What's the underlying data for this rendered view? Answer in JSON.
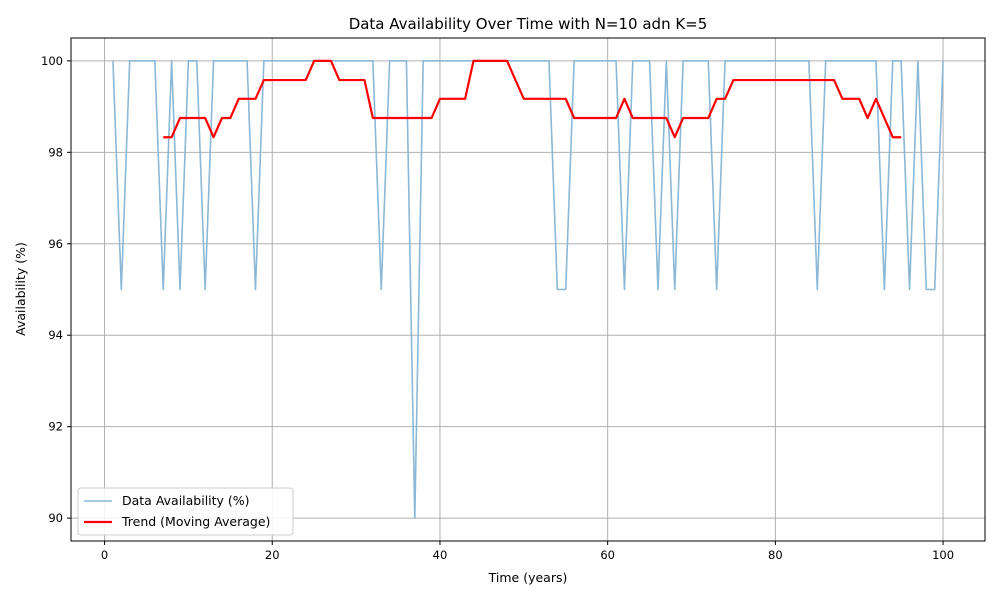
{
  "chart_data": {
    "type": "line",
    "title": "Data Availability Over Time with N=10 adn K=5",
    "xlabel": "Time (years)",
    "ylabel": "Availability (%)",
    "xlim": [
      -4,
      105
    ],
    "ylim": [
      89.5,
      100.5
    ],
    "xticks": [
      0,
      20,
      40,
      60,
      80,
      100
    ],
    "yticks": [
      90,
      92,
      94,
      96,
      98,
      100
    ],
    "grid": true,
    "legend": "lower-left",
    "series": [
      {
        "name": "Data Availability (%)",
        "color": "#8ab8d6",
        "x": [
          1,
          2,
          3,
          4,
          5,
          6,
          7,
          8,
          9,
          10,
          11,
          12,
          13,
          14,
          15,
          16,
          17,
          18,
          19,
          20,
          21,
          22,
          23,
          24,
          25,
          26,
          27,
          28,
          29,
          30,
          31,
          32,
          33,
          34,
          35,
          36,
          37,
          38,
          39,
          40,
          41,
          42,
          43,
          44,
          45,
          46,
          47,
          48,
          49,
          50,
          51,
          52,
          53,
          54,
          55,
          56,
          57,
          58,
          59,
          60,
          61,
          62,
          63,
          64,
          65,
          66,
          67,
          68,
          69,
          70,
          71,
          72,
          73,
          74,
          75,
          76,
          77,
          78,
          79,
          80,
          81,
          82,
          83,
          84,
          85,
          86,
          87,
          88,
          89,
          90,
          91,
          92,
          93,
          94,
          95,
          96,
          97,
          98,
          99,
          100
        ],
        "values": [
          100,
          95,
          100,
          100,
          100,
          100,
          95,
          100,
          95,
          100,
          100,
          95,
          100,
          100,
          100,
          100,
          100,
          95,
          100,
          100,
          100,
          100,
          100,
          100,
          100,
          100,
          100,
          100,
          100,
          100,
          100,
          100,
          95,
          100,
          100,
          100,
          90,
          100,
          100,
          100,
          100,
          100,
          100,
          100,
          100,
          100,
          100,
          100,
          100,
          100,
          100,
          100,
          100,
          95,
          95,
          100,
          100,
          100,
          100,
          100,
          100,
          95,
          100,
          100,
          100,
          95,
          100,
          95,
          100,
          100,
          100,
          100,
          95,
          100,
          100,
          100,
          100,
          100,
          100,
          100,
          100,
          100,
          100,
          100,
          95,
          100,
          100,
          100,
          100,
          100,
          100,
          100,
          95,
          100,
          100,
          95,
          100,
          95,
          95,
          100
        ]
      },
      {
        "name": "Trend (Moving Average)",
        "color": "#ff0000",
        "x": [
          7,
          8,
          9,
          10,
          11,
          12,
          13,
          14,
          15,
          16,
          17,
          18,
          19,
          20,
          21,
          22,
          23,
          24,
          25,
          26,
          27,
          28,
          29,
          30,
          31,
          32,
          33,
          34,
          35,
          36,
          37,
          38,
          39,
          40,
          41,
          42,
          43,
          44,
          45,
          46,
          47,
          48,
          49,
          50,
          51,
          52,
          53,
          54,
          55,
          56,
          57,
          58,
          59,
          60,
          61,
          62,
          63,
          64,
          65,
          66,
          67,
          68,
          69,
          70,
          71,
          72,
          73,
          74,
          75,
          76,
          77,
          78,
          79,
          80,
          81,
          82,
          83,
          84,
          85,
          86,
          87,
          88,
          89,
          90,
          91,
          92,
          93,
          94,
          95
        ],
        "values": [
          98.33,
          98.33,
          98.75,
          98.75,
          98.75,
          98.75,
          98.33,
          98.75,
          98.75,
          99.17,
          99.17,
          99.17,
          99.58,
          99.58,
          99.58,
          99.58,
          99.58,
          99.58,
          100,
          100,
          100,
          99.58,
          99.58,
          99.58,
          99.58,
          98.75,
          98.75,
          98.75,
          98.75,
          98.75,
          98.75,
          98.75,
          98.75,
          99.17,
          99.17,
          99.17,
          99.17,
          100,
          100,
          100,
          100,
          100,
          99.58,
          99.17,
          99.17,
          99.17,
          99.17,
          99.17,
          99.17,
          98.75,
          98.75,
          98.75,
          98.75,
          98.75,
          98.75,
          99.17,
          98.75,
          98.75,
          98.75,
          98.75,
          98.75,
          98.33,
          98.75,
          98.75,
          98.75,
          98.75,
          99.17,
          99.17,
          99.58,
          99.58,
          99.58,
          99.58,
          99.58,
          99.58,
          99.58,
          99.58,
          99.58,
          99.58,
          99.58,
          99.58,
          99.58,
          99.17,
          99.17,
          99.17,
          98.75,
          99.17,
          98.75,
          98.33,
          98.33
        ]
      }
    ]
  }
}
